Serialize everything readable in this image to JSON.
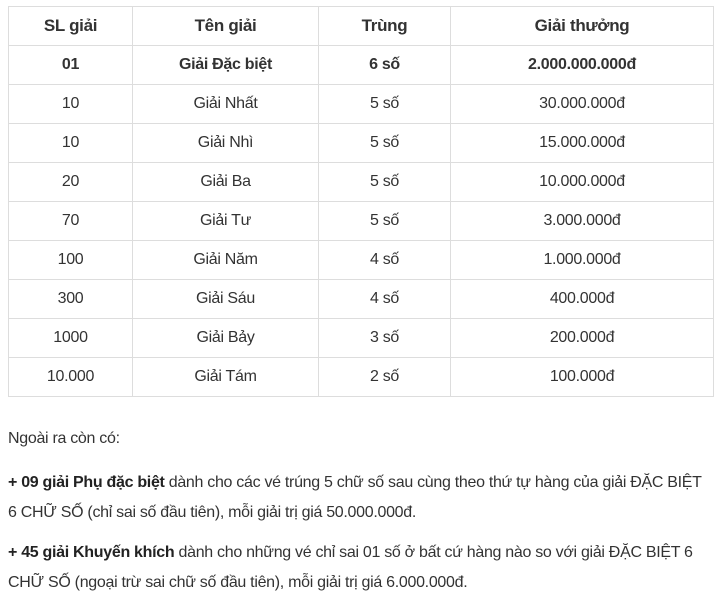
{
  "table": {
    "headers": [
      "SL giải",
      "Tên giải",
      "Trùng",
      "Giải thưởng"
    ],
    "rows": [
      [
        "01",
        "Giải Đặc biệt",
        "6 số",
        "2.000.000.000đ"
      ],
      [
        "10",
        "Giải Nhất",
        "5 số",
        "30.000.000đ"
      ],
      [
        "10",
        "Giải Nhì",
        "5 số",
        "15.000.000đ"
      ],
      [
        "20",
        "Giải Ba",
        "5 số",
        "10.000.000đ"
      ],
      [
        "70",
        "Giải Tư",
        "5 số",
        "3.000.000đ"
      ],
      [
        "100",
        "Giải Năm",
        "4 số",
        "1.000.000đ"
      ],
      [
        "300",
        "Giải Sáu",
        "4 số",
        "400.000đ"
      ],
      [
        "1000",
        "Giải Bảy",
        "3 số",
        "200.000đ"
      ],
      [
        "10.000",
        "Giải Tám",
        "2 số",
        "100.000đ"
      ]
    ]
  },
  "notes": {
    "intro": "Ngoài ra còn có:",
    "items": [
      {
        "bold": "+ 09 giải Phụ đặc biệt",
        "text": " dành cho các vé trúng 5 chữ số sau cùng theo thứ tự hàng của giải ĐẶC BIỆT 6 CHỮ SỐ (chỉ sai số đầu tiên), mỗi giải trị giá 50.000.000đ."
      },
      {
        "bold": "+ 45 giải Khuyến khích",
        "text": " dành cho những vé chỉ sai 01 số ở bất cứ hàng nào so với giải ĐẶC BIỆT 6 CHỮ SỐ (ngoại trừ sai chữ số đầu tiên), mỗi giải trị giá 6.000.000đ."
      }
    ]
  }
}
